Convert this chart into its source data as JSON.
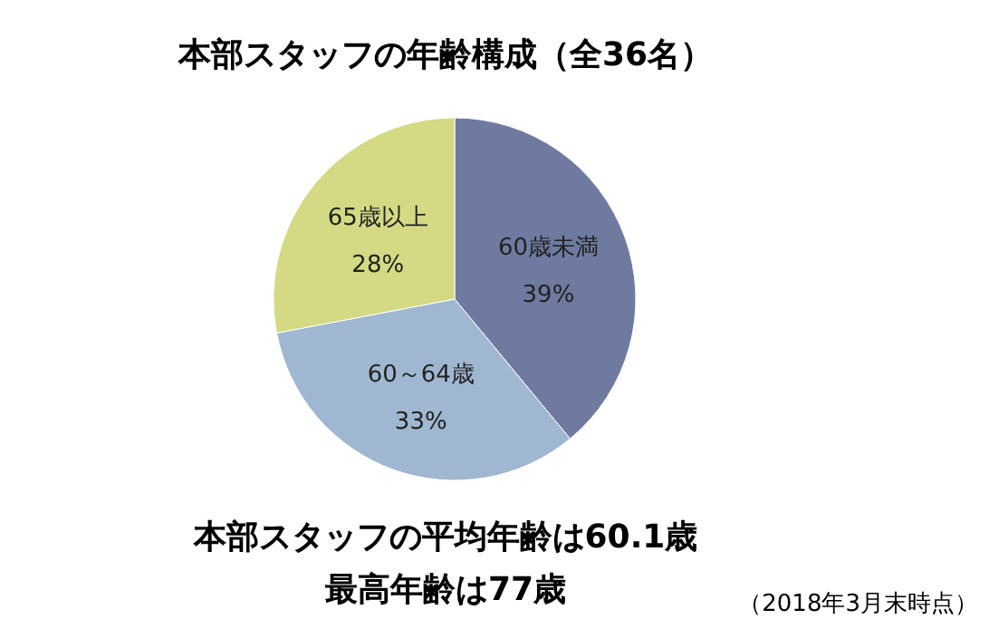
{
  "chart_data": {
    "type": "pie",
    "title": "本部スタッフの年齢構成（全36名）",
    "categories": [
      "60歳未満",
      "60～64歳",
      "65歳以上"
    ],
    "values": [
      39,
      33,
      28
    ],
    "value_labels": [
      "39%",
      "33%",
      "28%"
    ],
    "colors": [
      "#6f7aa0",
      "#a0b7d1",
      "#d4d983"
    ],
    "annotations": [
      "本部スタッフの平均年齢は60.1歳",
      "最高年齢は77歳",
      "（2018年3月末時点）"
    ]
  }
}
